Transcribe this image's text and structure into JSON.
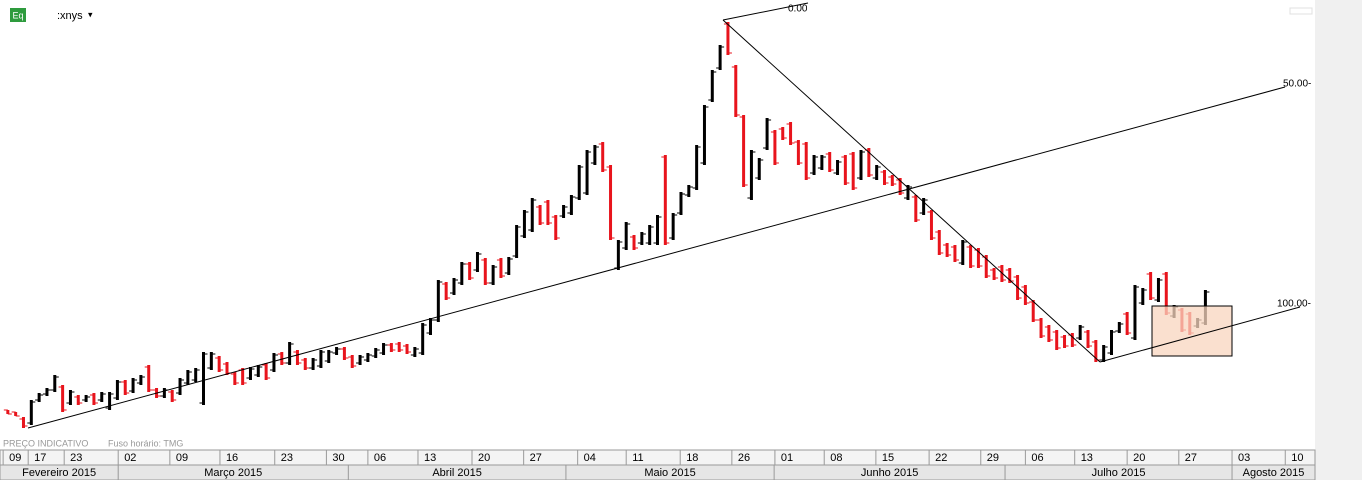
{
  "header": {
    "icon": "Eq",
    "exchange": ":xnys",
    "menu": "▾"
  },
  "footer": {
    "note": "PREÇO INDICATIVO",
    "timezone": "Fuso horário: TMG"
  },
  "chart_data": {
    "type": "ohlc",
    "up_color": "#000000",
    "down_color": "#e8141c",
    "annotations": [
      "0.00",
      "50.00-",
      "100.00-"
    ],
    "xlim": [
      -1,
      167
    ],
    "ylim": [
      0,
      440
    ],
    "xticks": [
      {
        "value": -0.6,
        "label": "09"
      },
      {
        "value": 2.6,
        "label": "17"
      },
      {
        "value": 7.2,
        "label": "23"
      },
      {
        "value": 14.1,
        "label": "02"
      },
      {
        "value": 20.7,
        "label": "09"
      },
      {
        "value": 27.1,
        "label": "16"
      },
      {
        "value": 34.1,
        "label": "23"
      },
      {
        "value": 40.7,
        "label": "30"
      },
      {
        "value": 46.0,
        "label": "06"
      },
      {
        "value": 52.4,
        "label": "13"
      },
      {
        "value": 59.3,
        "label": "20"
      },
      {
        "value": 65.9,
        "label": "27"
      },
      {
        "value": 72.8,
        "label": "04"
      },
      {
        "value": 79.0,
        "label": "11"
      },
      {
        "value": 85.9,
        "label": "18"
      },
      {
        "value": 92.5,
        "label": "26"
      },
      {
        "value": 98.0,
        "label": "01"
      },
      {
        "value": 104.3,
        "label": "08"
      },
      {
        "value": 110.9,
        "label": "15"
      },
      {
        "value": 117.7,
        "label": "22"
      },
      {
        "value": 124.3,
        "label": "29"
      },
      {
        "value": 130.0,
        "label": "06"
      },
      {
        "value": 136.3,
        "label": "13"
      },
      {
        "value": 143.0,
        "label": "20"
      },
      {
        "value": 149.6,
        "label": "27"
      },
      {
        "value": 156.4,
        "label": "03"
      },
      {
        "value": 163.2,
        "label": "10"
      }
    ],
    "months": [
      {
        "value": -1,
        "label": "Fevereiro 2015"
      },
      {
        "value": 14.1,
        "label": "Março 2015"
      },
      {
        "value": 43.5,
        "label": "Abril 2015"
      },
      {
        "value": 71.3,
        "label": "Maio 2015"
      },
      {
        "value": 97.9,
        "label": "Junho 2015"
      },
      {
        "value": 127.4,
        "label": "Julho 2015"
      },
      {
        "value": 156.4,
        "label": "Agosto 2015"
      }
    ],
    "open": [
      30,
      28,
      21,
      17,
      40,
      46,
      50,
      53,
      37,
      43,
      40,
      45,
      40,
      32,
      42,
      58,
      49,
      57,
      73,
      50,
      44,
      48,
      47,
      57,
      60,
      37,
      72,
      82,
      76,
      66,
      70,
      62,
      65,
      75,
      70,
      86,
      77,
      88,
      80,
      72,
      74,
      79,
      87,
      91,
      83,
      77,
      80,
      84,
      87,
      95,
      96,
      94,
      85,
      87,
      107,
      120,
      156,
      147,
      157,
      176,
      170,
      180,
      157,
      180,
      167,
      184,
      204,
      210,
      233,
      238,
      223,
      224,
      227,
      242,
      247,
      277,
      296,
      273,
      172,
      192,
      203,
      197,
      197,
      197,
      283,
      202,
      227,
      245,
      252,
      277,
      340,
      372,
      416,
      373,
      323,
      242,
      262,
      292,
      308,
      311,
      316,
      298,
      296,
      267,
      272,
      286,
      267,
      283,
      286,
      262,
      290,
      262,
      268,
      263,
      260,
      242,
      243,
      227,
      228,
      208,
      195,
      193,
      177,
      193,
      190,
      183,
      170,
      173,
      170,
      163,
      153,
      138,
      120,
      113,
      108,
      103,
      105,
      102,
      108,
      98,
      80,
      87,
      109,
      126,
      102,
      137,
      166,
      140,
      166,
      124,
      130,
      126,
      114,
      117
    ],
    "high": [
      30,
      28,
      23,
      40,
      47,
      52,
      65,
      55,
      50,
      45,
      45,
      47,
      48,
      48,
      60,
      60,
      62,
      65,
      75,
      52,
      52,
      50,
      62,
      70,
      72,
      88,
      88,
      84,
      78,
      68,
      72,
      73,
      75,
      77,
      87,
      88,
      98,
      90,
      82,
      82,
      90,
      90,
      93,
      93,
      85,
      85,
      87,
      92,
      97,
      97,
      98,
      96,
      93,
      117,
      122,
      160,
      158,
      162,
      178,
      178,
      188,
      182,
      175,
      182,
      183,
      215,
      230,
      242,
      235,
      240,
      225,
      235,
      245,
      275,
      290,
      295,
      298,
      275,
      200,
      218,
      205,
      208,
      215,
      225,
      285,
      227,
      248,
      255,
      295,
      335,
      370,
      395,
      418,
      375,
      325,
      290,
      282,
      322,
      310,
      313,
      318,
      300,
      298,
      285,
      285,
      288,
      280,
      285,
      288,
      290,
      292,
      275,
      270,
      265,
      262,
      255,
      245,
      242,
      230,
      210,
      197,
      195,
      200,
      195,
      192,
      185,
      172,
      175,
      172,
      165,
      155,
      140,
      122,
      115,
      110,
      105,
      107,
      115,
      110,
      100,
      95,
      110,
      118,
      128,
      155,
      152,
      168,
      162,
      168,
      135,
      132,
      128,
      122,
      150
    ],
    "low": [
      26,
      24,
      12,
      15,
      38,
      44,
      48,
      28,
      35,
      35,
      38,
      35,
      38,
      30,
      40,
      45,
      47,
      55,
      48,
      42,
      42,
      38,
      45,
      55,
      58,
      35,
      70,
      68,
      65,
      55,
      55,
      60,
      63,
      60,
      68,
      75,
      75,
      75,
      70,
      70,
      72,
      77,
      85,
      80,
      72,
      75,
      78,
      82,
      85,
      88,
      88,
      86,
      83,
      85,
      105,
      118,
      140,
      145,
      155,
      160,
      168,
      155,
      155,
      162,
      165,
      182,
      202,
      208,
      215,
      215,
      200,
      222,
      225,
      240,
      245,
      275,
      268,
      200,
      170,
      190,
      190,
      195,
      195,
      195,
      195,
      200,
      225,
      243,
      250,
      275,
      338,
      370,
      385,
      323,
      253,
      240,
      260,
      290,
      275,
      300,
      295,
      275,
      260,
      265,
      270,
      268,
      265,
      255,
      250,
      260,
      263,
      260,
      255,
      254,
      245,
      240,
      218,
      225,
      200,
      185,
      183,
      178,
      175,
      172,
      172,
      162,
      160,
      158,
      157,
      140,
      135,
      118,
      102,
      98,
      90,
      92,
      93,
      100,
      92,
      78,
      78,
      85,
      107,
      105,
      100,
      135,
      140,
      138,
      125,
      122,
      108,
      105,
      112,
      115
    ],
    "close": [
      26,
      24,
      14,
      38,
      45,
      50,
      63,
      30,
      48,
      37,
      43,
      37,
      46,
      46,
      58,
      47,
      60,
      63,
      50,
      44,
      50,
      40,
      60,
      68,
      70,
      86,
      86,
      70,
      67,
      57,
      57,
      71,
      73,
      62,
      85,
      77,
      96,
      77,
      72,
      80,
      88,
      88,
      91,
      82,
      74,
      83,
      85,
      90,
      95,
      90,
      90,
      88,
      91,
      115,
      120,
      158,
      142,
      160,
      176,
      162,
      186,
      157,
      173,
      164,
      181,
      213,
      228,
      240,
      217,
      217,
      202,
      233,
      243,
      273,
      288,
      293,
      270,
      202,
      198,
      216,
      192,
      206,
      213,
      223,
      197,
      225,
      246,
      253,
      293,
      333,
      368,
      393,
      387,
      325,
      255,
      288,
      280,
      320,
      277,
      302,
      297,
      277,
      262,
      283,
      283,
      270,
      278,
      257,
      252,
      288,
      265,
      273,
      257,
      256,
      247,
      253,
      220,
      240,
      202,
      187,
      185,
      180,
      198,
      174,
      174,
      164,
      162,
      160,
      159,
      142,
      137,
      120,
      104,
      100,
      92,
      94,
      95,
      113,
      94,
      80,
      93,
      108,
      116,
      107,
      153,
      150,
      142,
      160,
      127,
      133,
      110,
      107,
      120,
      148
    ]
  }
}
